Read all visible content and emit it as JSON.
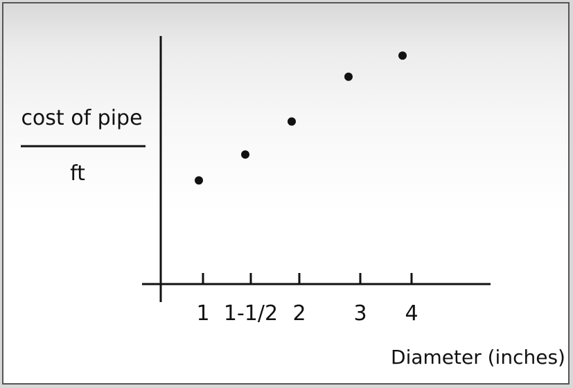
{
  "chart_data": {
    "type": "scatter",
    "ylabel_numerator": "cost of pipe",
    "ylabel_denominator": "ft",
    "xlabel": "Diameter (inches)",
    "tick_labels": [
      "1",
      "1-1/2",
      "2",
      "3",
      "4"
    ],
    "points": [
      {
        "x": "1",
        "y": 0.44
      },
      {
        "x": "1-1/2",
        "y": 0.55
      },
      {
        "x": "2",
        "y": 0.69
      },
      {
        "x": "3",
        "y": 0.88
      },
      {
        "x": "4",
        "y": 0.97
      }
    ],
    "ylim": [
      0,
      1
    ],
    "grid": false,
    "legend": "none",
    "colors": {
      "ink": "#111111",
      "background": "#ffffff"
    }
  }
}
